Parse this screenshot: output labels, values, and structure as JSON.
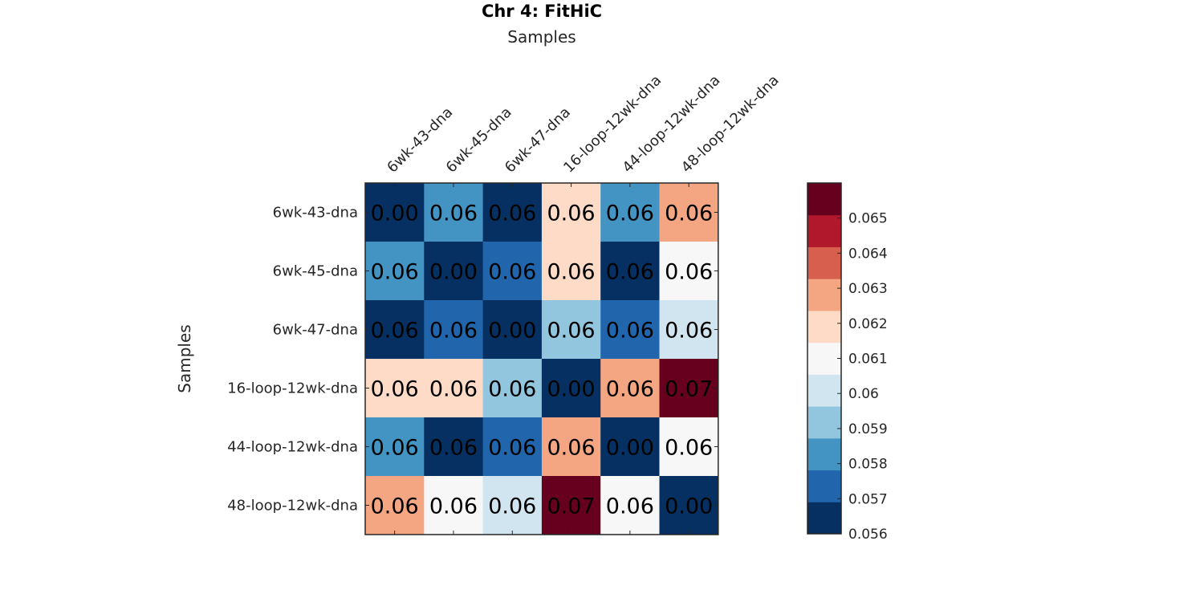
{
  "chart_data": {
    "type": "heatmap",
    "title": "Chr 4: FitHiC",
    "xlabel": "Samples",
    "ylabel": "Samples",
    "categories": [
      "6wk-43-dna",
      "6wk-45-dna",
      "6wk-47-dna",
      "16-loop-12wk-dna",
      "44-loop-12wk-dna",
      "48-loop-12wk-dna"
    ],
    "values": [
      [
        0.0,
        0.0583,
        0.0562,
        0.0617,
        0.0584,
        0.0632
      ],
      [
        0.0583,
        0.0,
        0.0574,
        0.0618,
        0.0563,
        0.0607
      ],
      [
        0.0562,
        0.0574,
        0.0,
        0.0593,
        0.0574,
        0.0603
      ],
      [
        0.0617,
        0.0618,
        0.0593,
        0.0,
        0.0632,
        0.0658
      ],
      [
        0.0584,
        0.0563,
        0.0574,
        0.0632,
        0.0,
        0.0607
      ],
      [
        0.0632,
        0.0607,
        0.0603,
        0.0658,
        0.0607,
        0.0
      ]
    ],
    "cell_labels": [
      [
        "0.00",
        "0.06",
        "0.06",
        "0.06",
        "0.06",
        "0.06"
      ],
      [
        "0.06",
        "0.00",
        "0.06",
        "0.06",
        "0.06",
        "0.06"
      ],
      [
        "0.06",
        "0.06",
        "0.00",
        "0.06",
        "0.06",
        "0.06"
      ],
      [
        "0.06",
        "0.06",
        "0.06",
        "0.00",
        "0.06",
        "0.07"
      ],
      [
        "0.06",
        "0.06",
        "0.06",
        "0.06",
        "0.00",
        "0.06"
      ],
      [
        "0.06",
        "0.06",
        "0.06",
        "0.07",
        "0.06",
        "0.00"
      ]
    ],
    "colorbar": {
      "range": [
        0.056,
        0.066
      ],
      "colors": [
        "#053061",
        "#2166ac",
        "#4393c3",
        "#92c5de",
        "#d1e5f0",
        "#f7f7f7",
        "#fddbc7",
        "#f4a582",
        "#d6604d",
        "#b2182b",
        "#67001f"
      ],
      "ticks": [
        0.056,
        0.057,
        0.058,
        0.059,
        0.06,
        0.061,
        0.062,
        0.063,
        0.064,
        0.065
      ],
      "tick_labels": [
        "0.056",
        "0.057",
        "0.058",
        "0.059",
        "0.06",
        "0.061",
        "0.062",
        "0.063",
        "0.064",
        "0.065"
      ]
    },
    "x_axis_position": "top",
    "grid": false
  }
}
